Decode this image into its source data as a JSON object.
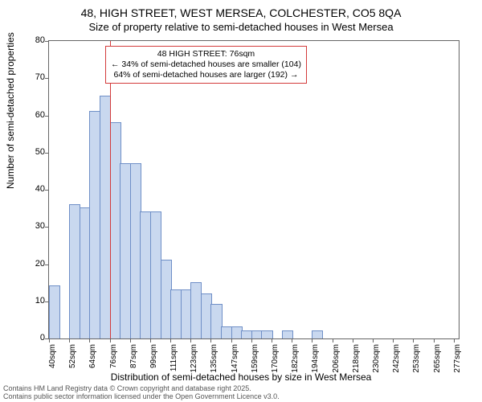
{
  "title": {
    "line1": "48, HIGH STREET, WEST MERSEA, COLCHESTER, CO5 8QA",
    "line2": "Size of property relative to semi-detached houses in West Mersea"
  },
  "chart": {
    "type": "histogram",
    "ylabel": "Number of semi-detached properties",
    "xlabel": "Distribution of semi-detached houses by size in West Mersea",
    "ylim": [
      0,
      80
    ],
    "ytick_step": 10,
    "xtick_step": 12,
    "xlim": [
      40,
      283
    ],
    "bin_width": 6,
    "bar_fill": "#c9d8ef",
    "bar_stroke": "#6f8fc7",
    "background": "#ffffff",
    "axis_color": "#666666",
    "x_start": 40,
    "bars": [
      {
        "x": 40,
        "count": 14
      },
      {
        "x": 46,
        "count": 0
      },
      {
        "x": 52,
        "count": 36
      },
      {
        "x": 58,
        "count": 35
      },
      {
        "x": 64,
        "count": 61
      },
      {
        "x": 70,
        "count": 65
      },
      {
        "x": 76,
        "count": 58
      },
      {
        "x": 82,
        "count": 47
      },
      {
        "x": 88,
        "count": 47
      },
      {
        "x": 94,
        "count": 34
      },
      {
        "x": 100,
        "count": 34
      },
      {
        "x": 106,
        "count": 21
      },
      {
        "x": 112,
        "count": 13
      },
      {
        "x": 118,
        "count": 13
      },
      {
        "x": 124,
        "count": 15
      },
      {
        "x": 130,
        "count": 12
      },
      {
        "x": 136,
        "count": 9
      },
      {
        "x": 142,
        "count": 3
      },
      {
        "x": 148,
        "count": 3
      },
      {
        "x": 154,
        "count": 2
      },
      {
        "x": 160,
        "count": 2
      },
      {
        "x": 166,
        "count": 2
      },
      {
        "x": 172,
        "count": 0
      },
      {
        "x": 178,
        "count": 2
      },
      {
        "x": 184,
        "count": 0
      },
      {
        "x": 190,
        "count": 0
      },
      {
        "x": 196,
        "count": 2
      }
    ],
    "reference_line": {
      "x": 76,
      "color": "#d33a3a"
    },
    "annotation": {
      "border_color": "#d33a3a",
      "line1": "48 HIGH STREET: 76sqm",
      "line2": "← 34% of semi-detached houses are smaller (104)",
      "line3": "64% of semi-detached houses are larger (192) →"
    }
  },
  "xtick_labels": [
    "40sqm",
    "52sqm",
    "64sqm",
    "76sqm",
    "87sqm",
    "99sqm",
    "111sqm",
    "123sqm",
    "135sqm",
    "147sqm",
    "159sqm",
    "170sqm",
    "182sqm",
    "194sqm",
    "206sqm",
    "218sqm",
    "230sqm",
    "242sqm",
    "253sqm",
    "265sqm",
    "277sqm"
  ],
  "footer": {
    "line1": "Contains HM Land Registry data © Crown copyright and database right 2025.",
    "line2": "Contains public sector information licensed under the Open Government Licence v3.0."
  }
}
